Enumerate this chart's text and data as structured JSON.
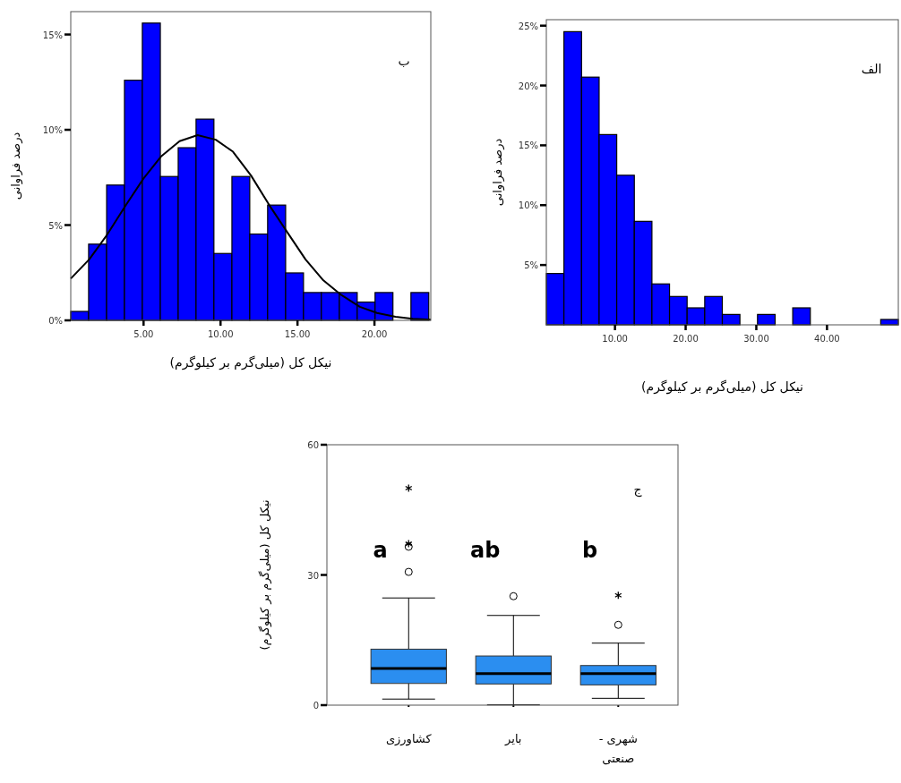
{
  "chart_data": [
    {
      "type": "histogram",
      "bins": [
        0.27,
        1.43,
        2.6,
        3.76,
        4.92,
        6.09,
        7.25,
        8.41,
        9.57,
        10.74,
        11.9,
        13.06,
        14.23,
        15.39,
        16.55,
        17.72,
        18.88,
        20.04,
        21.2,
        22.37,
        23.53
      ],
      "series": [
        {
          "type": "histogram",
          "color": "#0000ff",
          "values": [
            0.47,
            4.0,
            7.1,
            12.6,
            15.6,
            7.55,
            9.06,
            10.56,
            3.51,
            7.55,
            4.53,
            6.05,
            2.49,
            1.46,
            1.46,
            1.46,
            0.96,
            1.46,
            0,
            1.46
          ]
        },
        {
          "type": "line",
          "color": "#000000",
          "x": [
            0.27,
            1.47,
            2.61,
            3.84,
            5.0,
            6.16,
            7.34,
            8.51,
            9.69,
            10.81,
            11.98,
            13.18,
            14.34,
            15.52,
            16.68,
            17.85,
            19.05,
            20.17,
            21.37,
            22.5,
            23.66
          ],
          "values": [
            2.19,
            3.2,
            4.47,
            6.03,
            7.45,
            8.62,
            9.4,
            9.72,
            9.48,
            8.85,
            7.6,
            6.03,
            4.62,
            3.2,
            2.1,
            1.33,
            0.71,
            0.39,
            0.19,
            0.08,
            0.03
          ]
        }
      ],
      "xlim": [
        0.27,
        23.66
      ],
      "xticks": [
        {
          "value": 5,
          "label": "5.00"
        },
        {
          "value": 10,
          "label": "10.00"
        },
        {
          "value": 15,
          "label": "15.00"
        },
        {
          "value": 20,
          "label": "20.00"
        }
      ],
      "ylim": [
        0,
        16.2
      ],
      "yticks": [
        {
          "value": 0,
          "label": "0%"
        },
        {
          "value": 5,
          "label": "5%"
        },
        {
          "value": 10,
          "label": "10%"
        },
        {
          "value": 15,
          "label": "15%"
        }
      ],
      "xlabel": "نیکل کل (میلی‌گرم بر کیلوگرم)",
      "ylabel": "درصد فراوانی",
      "annotations": [
        "ب"
      ]
    },
    {
      "type": "histogram",
      "bins": [
        0.29,
        2.78,
        5.27,
        7.76,
        10.25,
        12.74,
        15.23,
        17.72,
        20.21,
        22.7,
        25.19,
        27.68,
        30.17,
        32.66,
        35.15,
        37.64,
        40.13,
        42.62,
        45.11,
        47.6,
        50.09
      ],
      "series": [
        {
          "type": "histogram",
          "color": "#0000ff",
          "values": [
            4.29,
            24.5,
            20.7,
            15.9,
            12.5,
            8.65,
            3.42,
            2.37,
            1.42,
            2.37,
            0.87,
            0,
            0.87,
            0,
            1.42,
            0,
            0,
            0,
            0,
            0.45
          ]
        }
      ],
      "xlim": [
        0.29,
        50.09
      ],
      "xticks": [
        {
          "value": 10,
          "label": "10.00"
        },
        {
          "value": 20,
          "label": "20.00"
        },
        {
          "value": 30,
          "label": "30.00"
        },
        {
          "value": 40,
          "label": "40.00"
        }
      ],
      "ylim": [
        0,
        25.5
      ],
      "yticks": [
        {
          "value": 5,
          "label": "5%"
        },
        {
          "value": 10,
          "label": "10%"
        },
        {
          "value": 15,
          "label": "15%"
        },
        {
          "value": 20,
          "label": "20%"
        },
        {
          "value": 25,
          "label": "25%"
        }
      ],
      "xlabel": "نیکل کل (میلی‌گرم بر کیلوگرم)",
      "ylabel": "درصد فراوانی",
      "annotations": [
        "الف"
      ]
    },
    {
      "type": "box",
      "categories": [
        "کشاورزی",
        "بایر",
        "شهری - صنعتی"
      ],
      "color": "#2b8ef0",
      "boxes": [
        {
          "low": 1.4,
          "q1": 5.0,
          "median": 8.45,
          "q3": 12.9,
          "high": 24.7,
          "outliers": [
            30.7,
            36.5,
            37.2,
            50.0
          ]
        },
        {
          "low": 0.07,
          "q1": 4.88,
          "median": 7.28,
          "q3": 11.33,
          "high": 20.67,
          "outliers": [
            25.1
          ]
        },
        {
          "low": 1.58,
          "q1": 4.67,
          "median": 7.28,
          "q3": 9.13,
          "high": 14.29,
          "outliers": [
            18.5,
            25.3
          ]
        }
      ],
      "ylim": [
        0,
        60
      ],
      "yticks": [
        0,
        30,
        60
      ],
      "ylabel": "نیکل کل (میلی‌گرم بر کیلوگرم)",
      "annotations": [
        "a",
        "ab",
        "b",
        "ج"
      ]
    }
  ]
}
